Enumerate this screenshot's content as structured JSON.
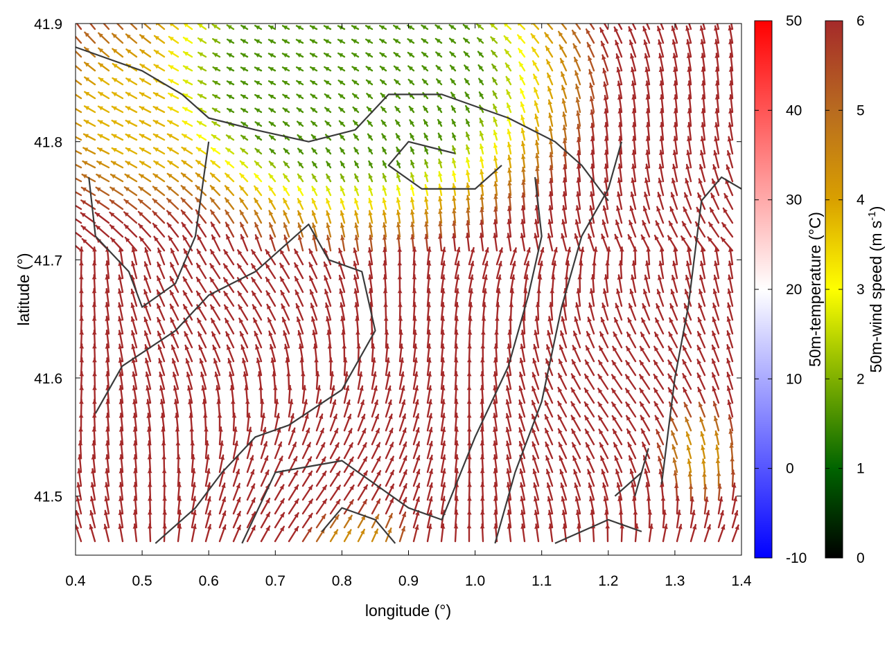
{
  "chart_data": {
    "type": "vector-field",
    "title": "",
    "xlabel": "longitude (°)",
    "ylabel": "latitude (°)",
    "xlim": [
      0.4,
      1.4
    ],
    "ylim": [
      41.45,
      41.9
    ],
    "x_ticks": [
      "0.4",
      "0.5",
      "0.6",
      "0.7",
      "0.8",
      "0.9",
      "1.0",
      "1.1",
      "1.2",
      "1.3",
      "1.4"
    ],
    "y_ticks": [
      "41.5",
      "41.6",
      "41.7",
      "41.8",
      "41.9"
    ],
    "x_tick_values": [
      0.4,
      0.5,
      0.6,
      0.7,
      0.8,
      0.9,
      1.0,
      1.1,
      1.2,
      1.3,
      1.4
    ],
    "y_tick_values": [
      41.5,
      41.6,
      41.7,
      41.8,
      41.9
    ],
    "colorbars": [
      {
        "label": "50m-temperature (°C)",
        "range": [
          -10,
          50
        ],
        "ticks": [
          "-10",
          "0",
          "10",
          "20",
          "30",
          "40",
          "50"
        ],
        "tick_values": [
          -10,
          0,
          10,
          20,
          30,
          40,
          50
        ],
        "colors": [
          "#0000ff",
          "#ffffff",
          "#ff0000"
        ]
      },
      {
        "label_main": "50m-wind speed (m s",
        "label_sup": "-1",
        "label_end": ")",
        "range": [
          0,
          6
        ],
        "ticks": [
          "0",
          "1",
          "2",
          "3",
          "4",
          "5",
          "6"
        ],
        "tick_values": [
          0,
          1,
          2,
          3,
          4,
          5,
          6
        ],
        "colors": [
          "#000000",
          "#006400",
          "#7fb000",
          "#ffff00",
          "#d9a000",
          "#b86b20",
          "#a52a2a"
        ]
      }
    ],
    "grid": false,
    "boundaries": [
      [
        [
          0.4,
          41.88
        ],
        [
          0.5,
          41.86
        ],
        [
          0.56,
          41.84
        ],
        [
          0.6,
          41.82
        ],
        [
          0.67,
          41.81
        ],
        [
          0.75,
          41.8
        ],
        [
          0.82,
          41.81
        ],
        [
          0.87,
          41.84
        ],
        [
          0.95,
          41.84
        ],
        [
          1.05,
          41.82
        ],
        [
          1.12,
          41.8
        ],
        [
          1.16,
          41.78
        ],
        [
          1.2,
          41.75
        ]
      ],
      [
        [
          0.42,
          41.77
        ],
        [
          0.43,
          41.72
        ],
        [
          0.48,
          41.69
        ],
        [
          0.5,
          41.66
        ],
        [
          0.55,
          41.68
        ],
        [
          0.58,
          41.72
        ],
        [
          0.6,
          41.8
        ]
      ],
      [
        [
          0.43,
          41.57
        ],
        [
          0.47,
          41.61
        ],
        [
          0.55,
          41.64
        ],
        [
          0.6,
          41.67
        ],
        [
          0.67,
          41.69
        ],
        [
          0.75,
          41.73
        ],
        [
          0.78,
          41.7
        ],
        [
          0.83,
          41.69
        ],
        [
          0.85,
          41.64
        ],
        [
          0.8,
          41.59
        ],
        [
          0.72,
          41.56
        ],
        [
          0.67,
          41.55
        ],
        [
          0.62,
          41.52
        ],
        [
          0.58,
          41.49
        ],
        [
          0.52,
          41.46
        ]
      ],
      [
        [
          0.65,
          41.46
        ],
        [
          0.7,
          41.52
        ],
        [
          0.8,
          41.53
        ],
        [
          0.85,
          41.51
        ],
        [
          0.9,
          41.49
        ],
        [
          0.95,
          41.48
        ],
        [
          1.0,
          41.55
        ],
        [
          1.05,
          41.61
        ],
        [
          1.08,
          41.67
        ],
        [
          1.1,
          41.72
        ],
        [
          1.09,
          41.77
        ]
      ],
      [
        [
          0.77,
          41.47
        ],
        [
          0.8,
          41.49
        ],
        [
          0.85,
          41.48
        ],
        [
          0.88,
          41.46
        ]
      ],
      [
        [
          1.03,
          41.46
        ],
        [
          1.06,
          41.52
        ],
        [
          1.1,
          41.58
        ],
        [
          1.13,
          41.66
        ],
        [
          1.16,
          41.72
        ],
        [
          1.2,
          41.76
        ],
        [
          1.22,
          41.8
        ]
      ],
      [
        [
          1.12,
          41.46
        ],
        [
          1.2,
          41.48
        ],
        [
          1.25,
          41.47
        ]
      ],
      [
        [
          1.28,
          41.51
        ],
        [
          1.3,
          41.6
        ],
        [
          1.32,
          41.66
        ],
        [
          1.34,
          41.75
        ],
        [
          1.37,
          41.77
        ],
        [
          1.4,
          41.76
        ]
      ],
      [
        [
          1.21,
          41.5
        ],
        [
          1.25,
          41.52
        ],
        [
          1.26,
          41.54
        ],
        [
          1.24,
          41.5
        ]
      ],
      [
        [
          0.97,
          41.79
        ],
        [
          0.9,
          41.8
        ],
        [
          0.87,
          41.78
        ],
        [
          0.92,
          41.76
        ],
        [
          1.0,
          41.76
        ],
        [
          1.04,
          41.78
        ]
      ]
    ]
  }
}
